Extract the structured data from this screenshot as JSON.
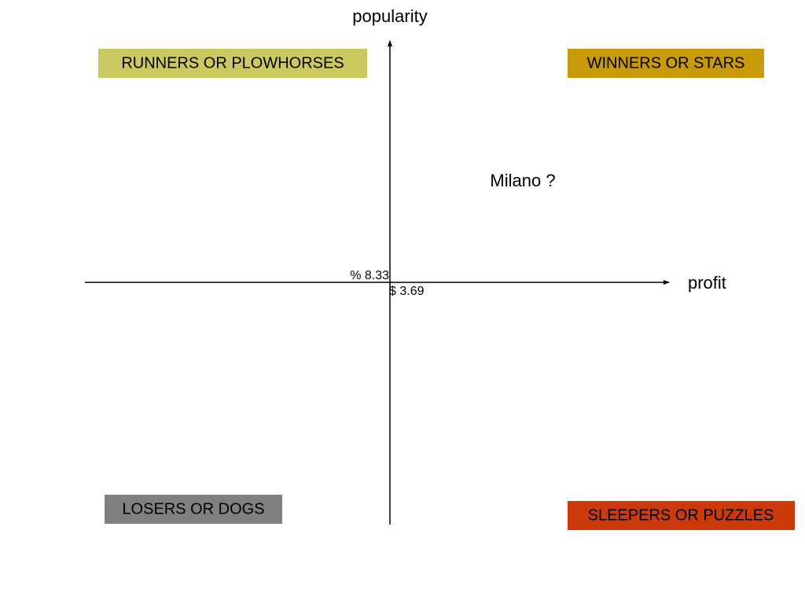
{
  "axes": {
    "y_label": "popularity",
    "x_label": "profit",
    "origin_y_value": "% 8.33",
    "origin_x_value": "$ 3.69"
  },
  "quadrants": {
    "top_left": "RUNNERS OR PLOWHORSES",
    "top_right": "WINNERS OR STARS",
    "bottom_left": "LOSERS OR DOGS",
    "bottom_right": "SLEEPERS OR PUZZLES"
  },
  "item": "Milano ?"
}
